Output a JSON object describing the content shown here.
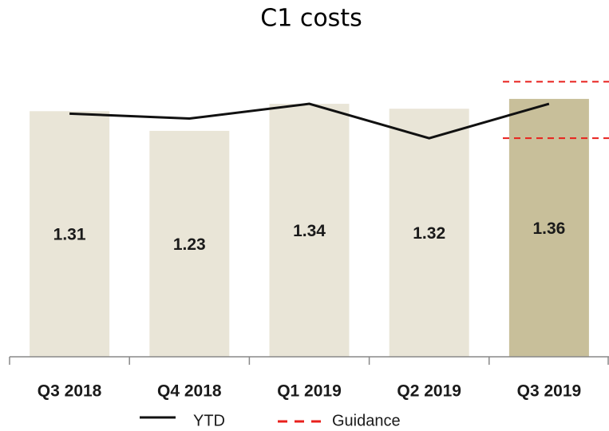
{
  "chart_data": {
    "type": "bar",
    "title": "C1 costs",
    "categories": [
      "Q3 2018",
      "Q4 2018",
      "Q1 2019",
      "Q2 2019",
      "Q3 2019"
    ],
    "values": [
      1.31,
      1.23,
      1.34,
      1.32,
      1.36
    ],
    "colors": [
      "#e9e5d7",
      "#e9e5d7",
      "#e9e5d7",
      "#e9e5d7",
      "#c8bf9a"
    ],
    "ylim": [
      0.31,
      1.5
    ],
    "series": [
      {
        "name": "YTD",
        "color": "#111111",
        "values": [
          1.3,
          1.28,
          1.34,
          1.2,
          1.34
        ]
      }
    ],
    "guidance": {
      "name": "Guidance",
      "color": "#e8201c",
      "values": [
        1.43,
        1.2
      ]
    }
  }
}
